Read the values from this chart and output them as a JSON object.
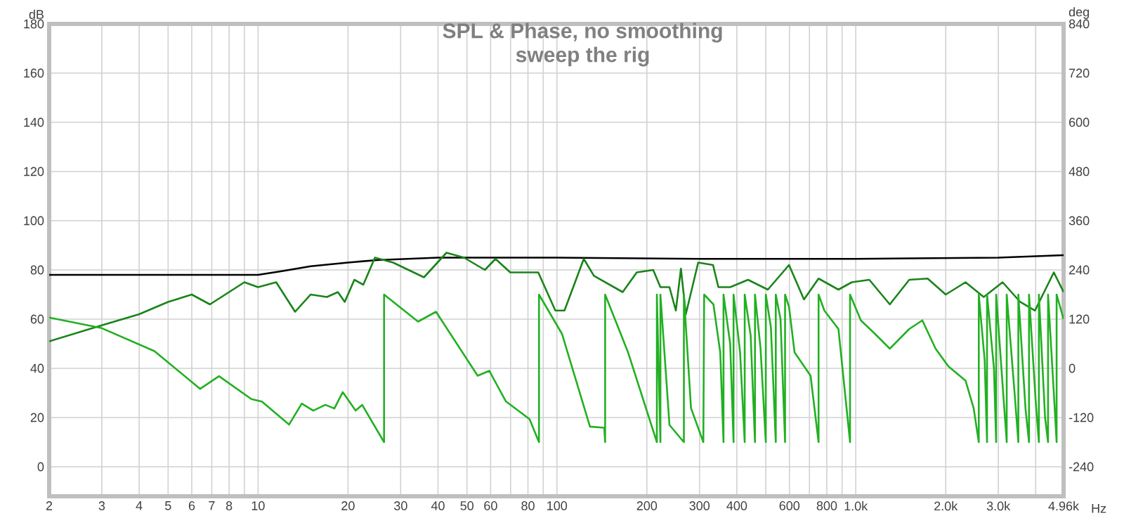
{
  "chart_data": {
    "type": "line",
    "title": "SPL & Phase, no smoothing",
    "subtitle": "sweep the rig",
    "xlabel": "Hz",
    "ylabel": "dB",
    "y2label": "deg",
    "log": "x",
    "grid": true,
    "xlim": [
      2,
      4960
    ],
    "ylim": [
      -12,
      180
    ],
    "y2lim": [
      -312,
      840
    ],
    "xticks": [
      2,
      3,
      4,
      5,
      6,
      7,
      8,
      {
        "value": 9,
        "label": null
      },
      10,
      20,
      30,
      40,
      50,
      60,
      {
        "value": 70,
        "label": null
      },
      80,
      {
        "value": 90,
        "label": null
      },
      100,
      200,
      300,
      400,
      {
        "value": 500,
        "label": null
      },
      600,
      {
        "value": 700,
        "label": null
      },
      800,
      {
        "value": 900,
        "label": null
      },
      {
        "value": 1000,
        "label": "1.0k"
      },
      {
        "value": 2000,
        "label": "2.0k"
      },
      {
        "value": 3000,
        "label": "3.0k"
      },
      {
        "value": 4000,
        "label": null
      },
      {
        "value": 4960,
        "label": "4.96k"
      }
    ],
    "yticks": [
      0,
      20,
      40,
      60,
      80,
      100,
      120,
      140,
      160,
      180
    ],
    "y2ticks": [
      -240,
      -120,
      0,
      120,
      240,
      360,
      480,
      600,
      720,
      840
    ],
    "series": [
      {
        "color": "#000000",
        "x": [
          2,
          10,
          12,
          15,
          20,
          25,
          40,
          100,
          300,
          1000,
          3000,
          4960
        ],
        "values": [
          78,
          78,
          79.5,
          81.5,
          83,
          84,
          85,
          85,
          84.5,
          84.5,
          85,
          86
        ]
      },
      {
        "color": "#1a841a",
        "x": [
          2,
          3,
          4,
          5,
          6,
          6.9,
          8,
          9,
          10,
          11.5,
          13.3,
          15,
          17,
          18.5,
          19.5,
          21,
          22.5,
          24.6,
          28.3,
          35.9,
          42.7,
          48.9,
          57.4,
          62.3,
          69.8,
          86.6,
          98.8,
          106,
          123,
          133,
          166,
          185,
          210,
          222,
          238,
          250,
          260,
          270,
          297,
          333,
          347,
          380,
          436,
          508,
          598,
          671,
          751,
          875,
          970,
          1110,
          1300,
          1510,
          1740,
          2000,
          2330,
          2680,
          3100,
          3550,
          3980,
          4600,
          4960
        ],
        "values": [
          51,
          57.5,
          62,
          67,
          70,
          66,
          71,
          75,
          73,
          75,
          63,
          70,
          69,
          71,
          67,
          76,
          74,
          85,
          83,
          77,
          87,
          85,
          80,
          84.5,
          79,
          79,
          63.5,
          63.5,
          84.5,
          77.6,
          71,
          79,
          80,
          73,
          73,
          63.5,
          80.5,
          62,
          83,
          82,
          73,
          73,
          76,
          72,
          82,
          68,
          76.5,
          72,
          75,
          76,
          66,
          76,
          76.5,
          70,
          75,
          69,
          75,
          67,
          63.5,
          79,
          71
        ]
      },
      {
        "color": "#22b022",
        "axis": "y2",
        "x": [
          2,
          3,
          4.5,
          6.4,
          7.4,
          9.5,
          10.3,
          12.7,
          14,
          15.3,
          16.8,
          18,
          19.2,
          21.2,
          22.3,
          26.4,
          26.4,
          34.3,
          39.4,
          54.3,
          59.4,
          67.4,
          81,
          87.1,
          87.1,
          104,
          129,
          144,
          145,
          145,
          173,
          216,
          216,
          222,
          222,
          238,
          266,
          266,
          281,
          309,
          311,
          334,
          352,
          361,
          361,
          380,
          390,
          390,
          410,
          425,
          425,
          445,
          460,
          460,
          480,
          500,
          500,
          520,
          540,
          540,
          560,
          580,
          580,
          598,
          624,
          706,
          751,
          751,
          785,
          875,
          957,
          957,
          1040,
          1160,
          1300,
          1510,
          1670,
          1850,
          2040,
          2330,
          2480,
          2580,
          2580,
          2700,
          2750,
          2750,
          2900,
          2950,
          2950,
          3100,
          3200,
          3200,
          3400,
          3500,
          3500,
          3700,
          3800,
          3800,
          4000,
          4100,
          4100,
          4300,
          4400,
          4400,
          4600,
          4700,
          4700,
          4960
        ],
        "values": [
          124,
          98,
          42,
          -50,
          -19,
          -75,
          -81,
          -137,
          -86,
          -103,
          -89,
          -98,
          -58,
          -103,
          -89,
          -180,
          180,
          114,
          138,
          -18,
          -6,
          -80,
          -124,
          -180,
          180,
          84,
          -142,
          -145,
          -180,
          180,
          39,
          -180,
          180,
          -180,
          180,
          -138,
          -180,
          180,
          -97,
          -180,
          180,
          156,
          39,
          -180,
          180,
          60,
          -180,
          180,
          40,
          -180,
          180,
          80,
          -180,
          180,
          50,
          -180,
          180,
          100,
          -180,
          180,
          120,
          -180,
          180,
          150,
          39,
          -18,
          -180,
          180,
          141,
          96,
          -180,
          180,
          117,
          84,
          48,
          96,
          117,
          48,
          5,
          -30,
          -97,
          -180,
          180,
          20,
          -180,
          180,
          0,
          -180,
          180,
          -40,
          -180,
          180,
          -60,
          -180,
          180,
          -100,
          -180,
          180,
          -80,
          -180,
          180,
          -120,
          -180,
          180,
          -60,
          -180,
          180,
          120
        ]
      }
    ]
  }
}
